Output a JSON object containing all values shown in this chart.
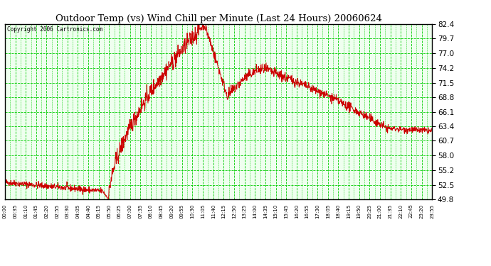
{
  "title": "Outdoor Temp (vs) Wind Chill per Minute (Last 24 Hours) 20060624",
  "copyright_text": "Copyright 2006 Cartronics.com",
  "background_color": "#ffffff",
  "plot_bg_color": "#efffef",
  "grid_color": "#00cc00",
  "line_color": "#cc0000",
  "y_min": 49.8,
  "y_max": 82.4,
  "y_ticks": [
    49.8,
    52.5,
    55.2,
    58.0,
    60.7,
    63.4,
    66.1,
    68.8,
    71.5,
    74.2,
    77.0,
    79.7,
    82.4
  ],
  "x_labels": [
    "00:00",
    "00:35",
    "01:10",
    "01:45",
    "02:20",
    "02:55",
    "03:30",
    "04:05",
    "04:40",
    "05:15",
    "05:50",
    "06:25",
    "07:00",
    "07:35",
    "08:10",
    "08:45",
    "09:20",
    "09:55",
    "10:30",
    "11:05",
    "11:40",
    "12:15",
    "12:50",
    "13:25",
    "14:00",
    "14:35",
    "15:10",
    "15:45",
    "16:20",
    "16:55",
    "17:30",
    "18:05",
    "18:40",
    "19:15",
    "19:50",
    "20:25",
    "21:00",
    "21:35",
    "22:10",
    "22:45",
    "23:20",
    "23:55"
  ],
  "num_points": 1440
}
